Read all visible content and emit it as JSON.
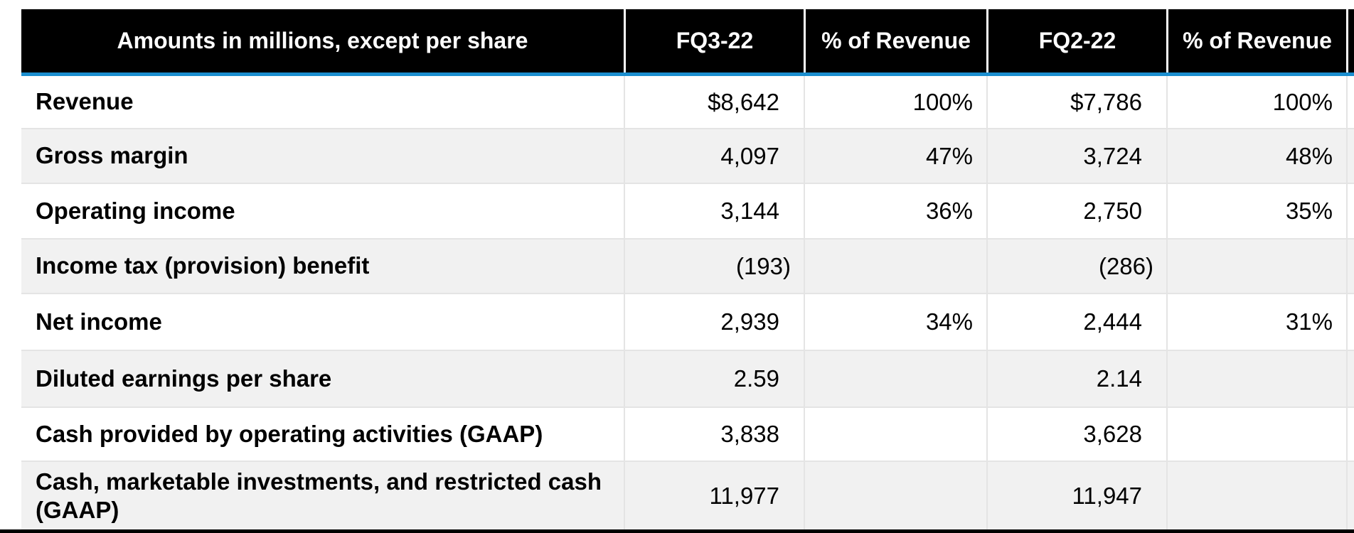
{
  "colors": {
    "header_bg": "#000000",
    "header_text": "#ffffff",
    "accent_blue": "#1b8ecf",
    "row_alt": "#f1f1f1",
    "grid_line": "#e4e4e4",
    "bottom_bar": "#000000"
  },
  "table": {
    "columns": [
      {
        "label": "Amounts in millions, except per share"
      },
      {
        "label": "FQ3-22"
      },
      {
        "label": "% of Revenue"
      },
      {
        "label": "FQ2-22"
      },
      {
        "label": "% of Revenue"
      },
      {
        "label": ""
      }
    ],
    "rows": [
      {
        "label": "Revenue",
        "v1": "$8,642",
        "p1": "100%",
        "v2": "$7,786",
        "p2": "100%"
      },
      {
        "label": "Gross margin",
        "v1": "4,097",
        "p1": "47%",
        "v2": "3,724",
        "p2": "48%"
      },
      {
        "label": "Operating income",
        "v1": "3,144",
        "p1": "36%",
        "v2": "2,750",
        "p2": "35%"
      },
      {
        "label": "Income tax (provision) benefit",
        "v1": "(193)",
        "p1": "",
        "v2": "(286)",
        "p2": ""
      },
      {
        "label": "Net income",
        "v1": "2,939",
        "p1": "34%",
        "v2": "2,444",
        "p2": "31%"
      },
      {
        "label": "Diluted earnings per share",
        "v1": "2.59",
        "p1": "",
        "v2": "2.14",
        "p2": ""
      },
      {
        "label": "Cash provided by operating activities (GAAP)",
        "v1": "3,838",
        "p1": "",
        "v2": "3,628",
        "p2": ""
      },
      {
        "label": "Cash, marketable investments, and restricted cash (GAAP)",
        "v1": "11,977",
        "p1": "",
        "v2": "11,947",
        "p2": ""
      }
    ]
  }
}
